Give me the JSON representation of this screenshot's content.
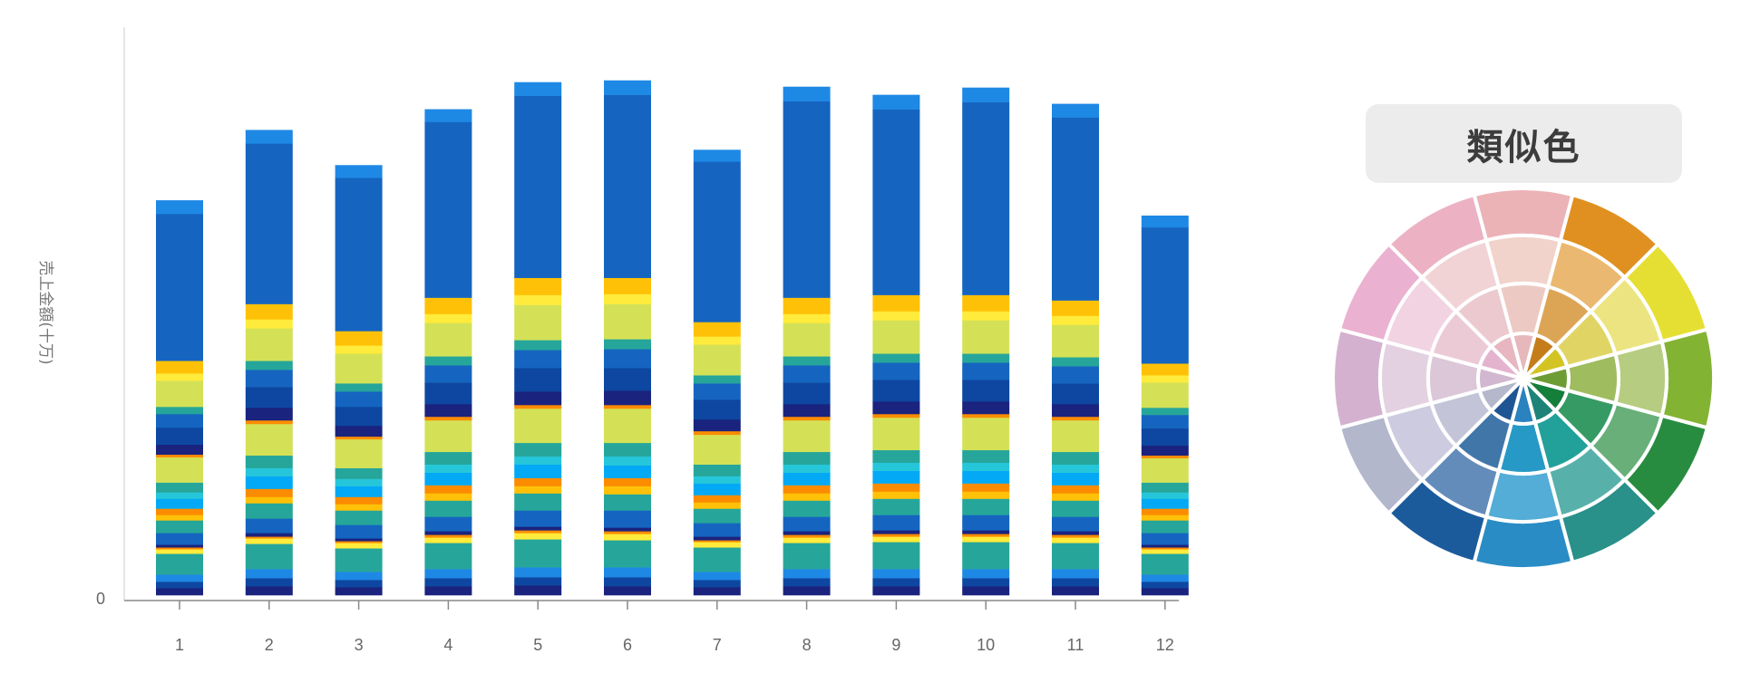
{
  "chart_data": {
    "type": "bar",
    "stacked": true,
    "title": "",
    "xlabel": "",
    "ylabel": "売上金額(十万)",
    "ylim": [
      0,
      630
    ],
    "y_tick_labels": [
      "0"
    ],
    "categories": [
      "1",
      "2",
      "3",
      "4",
      "5",
      "6",
      "7",
      "8",
      "9",
      "10",
      "11",
      "12"
    ],
    "segment_colors": [
      "#1a237e",
      "#0d47a1",
      "#1e88e5",
      "#26a69a",
      "#ffeb3b",
      "#fb8c00",
      "#1a237e",
      "#1565c0",
      "#26a69a",
      "#ffc107",
      "#fb8c00",
      "#03a9f4",
      "#26c6da",
      "#26a69a",
      "#d4e157",
      "#fb8c00",
      "#1a237e",
      "#0d47a1",
      "#1565c0",
      "#26a69a",
      "#d4e157",
      "#ffeb3b",
      "#ffc107",
      "#1565c0",
      "#1e88e5"
    ],
    "bars": [
      [
        8,
        7,
        8,
        23,
        5,
        2,
        3,
        13,
        14,
        6,
        7,
        11,
        7,
        11,
        28,
        3,
        11,
        19,
        15,
        8,
        29,
        8,
        14,
        163,
        15
      ],
      [
        10,
        9,
        10,
        28,
        6,
        2,
        4,
        16,
        17,
        7,
        9,
        14,
        9,
        14,
        35,
        4,
        14,
        23,
        19,
        10,
        36,
        10,
        17,
        178,
        15
      ],
      [
        9,
        8,
        9,
        26,
        6,
        2,
        3,
        15,
        16,
        7,
        8,
        12,
        8,
        12,
        32,
        3,
        12,
        21,
        17,
        9,
        33,
        9,
        16,
        170,
        14
      ],
      [
        10,
        9,
        10,
        29,
        6,
        3,
        4,
        16,
        18,
        8,
        9,
        14,
        9,
        14,
        35,
        4,
        14,
        24,
        19,
        10,
        37,
        10,
        18,
        195,
        14
      ],
      [
        11,
        9,
        11,
        31,
        7,
        3,
        4,
        18,
        19,
        8,
        9,
        15,
        9,
        15,
        38,
        4,
        15,
        26,
        20,
        11,
        39,
        11,
        19,
        202,
        15
      ],
      [
        10,
        10,
        11,
        30,
        7,
        3,
        4,
        19,
        18,
        9,
        9,
        14,
        10,
        15,
        38,
        4,
        16,
        25,
        21,
        11,
        39,
        11,
        18,
        203,
        16
      ],
      [
        9,
        8,
        9,
        27,
        6,
        2,
        4,
        15,
        16,
        7,
        8,
        13,
        8,
        13,
        33,
        4,
        13,
        22,
        18,
        9,
        34,
        9,
        16,
        178,
        13
      ],
      [
        10,
        9,
        10,
        29,
        6,
        3,
        4,
        16,
        18,
        8,
        9,
        14,
        9,
        14,
        35,
        4,
        14,
        24,
        19,
        10,
        37,
        10,
        18,
        218,
        16
      ],
      [
        10,
        9,
        10,
        30,
        6,
        3,
        4,
        17,
        18,
        8,
        9,
        14,
        9,
        14,
        36,
        4,
        14,
        24,
        19,
        10,
        37,
        10,
        18,
        206,
        16
      ],
      [
        10,
        9,
        10,
        30,
        6,
        3,
        4,
        17,
        18,
        8,
        9,
        14,
        9,
        14,
        36,
        4,
        14,
        24,
        19,
        10,
        37,
        10,
        18,
        214,
        16
      ],
      [
        10,
        9,
        10,
        29,
        6,
        3,
        4,
        16,
        18,
        8,
        9,
        14,
        9,
        14,
        35,
        4,
        14,
        23,
        19,
        10,
        36,
        10,
        17,
        203,
        15
      ],
      [
        8,
        7,
        8,
        23,
        5,
        2,
        3,
        13,
        14,
        6,
        7,
        11,
        7,
        11,
        27,
        3,
        11,
        19,
        15,
        8,
        28,
        8,
        13,
        151,
        13
      ]
    ]
  },
  "color_wheel": {
    "title": "類似色",
    "sectors": [
      [
        "#ecb3b7",
        "#f1d3cb",
        "#ecc9c2",
        "#e6b8bb"
      ],
      [
        "#e09020",
        "#eab870",
        "#dca556",
        "#c57c1a"
      ],
      [
        "#e6df33",
        "#ece480",
        "#e0d564",
        "#d3c424"
      ],
      [
        "#83b333",
        "#b6cc80",
        "#9fbc5f",
        "#6e9c34"
      ],
      [
        "#288c40",
        "#68af7a",
        "#359a63",
        "#147e3b"
      ],
      [
        "#29908a",
        "#57b1aa",
        "#22a09a",
        "#1d8379"
      ],
      [
        "#2a8cc5",
        "#53add6",
        "#2699c6",
        "#2a82bf"
      ],
      [
        "#1c5b9b",
        "#648cbb",
        "#4176a9",
        "#1f5592"
      ],
      [
        "#b2b7cc",
        "#cdcbdf",
        "#c4c4d8",
        "#b5b8cb"
      ],
      [
        "#d4b2cf",
        "#e3d1e1",
        "#dbc7d8",
        "#d1b7cf"
      ],
      [
        "#ebb1d0",
        "#f1d3e2",
        "#ebcad6",
        "#e4b4cf"
      ],
      [
        "#ecb2c4",
        "#f1d3d6",
        "#ecc9cf",
        "#e7b6c0"
      ]
    ]
  }
}
